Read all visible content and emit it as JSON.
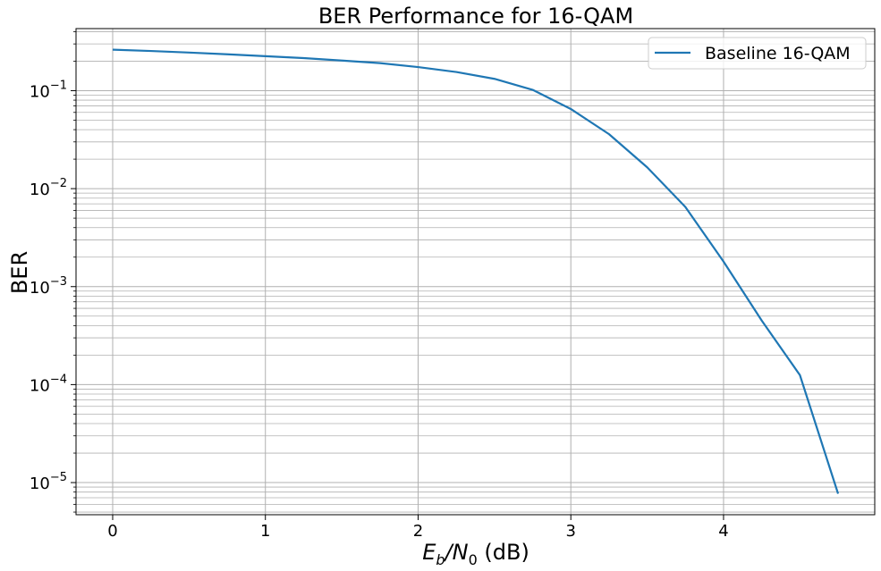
{
  "chart_data": {
    "type": "line",
    "title": "BER Performance for 16-QAM",
    "xlabel": {
      "base": "E",
      "sub1": "b",
      "mid": "/N",
      "sub2": "0",
      "suffix": " (dB)"
    },
    "ylabel": "BER",
    "x_scale": "linear",
    "y_scale": "log",
    "xlim": [
      -0.24,
      4.99
    ],
    "ylim": [
      4.7e-06,
      0.43
    ],
    "x_ticks": [
      0,
      1,
      2,
      3,
      4
    ],
    "x_tick_labels": [
      "0",
      "1",
      "2",
      "3",
      "4"
    ],
    "y_ticks": [
      1e-05,
      0.0001,
      0.001,
      0.01,
      0.1
    ],
    "y_tick_labels": [
      {
        "base": "10",
        "exp": "−5"
      },
      {
        "base": "10",
        "exp": "−4"
      },
      {
        "base": "10",
        "exp": "−3"
      },
      {
        "base": "10",
        "exp": "−2"
      },
      {
        "base": "10",
        "exp": "−1"
      }
    ],
    "grid": "on (major and minor)",
    "legend": "top-right",
    "series": [
      {
        "name": "Baseline 16-QAM",
        "color": "#1f77b4",
        "x": [
          0,
          0.25,
          0.5,
          0.75,
          1.0,
          1.25,
          1.5,
          1.75,
          2.0,
          2.25,
          2.5,
          2.75,
          3.0,
          3.25,
          3.5,
          3.75,
          4.0,
          4.25,
          4.5,
          4.75
        ],
        "y": [
          0.262,
          0.254,
          0.245,
          0.235,
          0.225,
          0.215,
          0.203,
          0.191,
          0.174,
          0.155,
          0.132,
          0.102,
          0.065,
          0.036,
          0.0165,
          0.0065,
          0.0018,
          0.00045,
          0.000125,
          7.7e-06
        ]
      }
    ]
  }
}
